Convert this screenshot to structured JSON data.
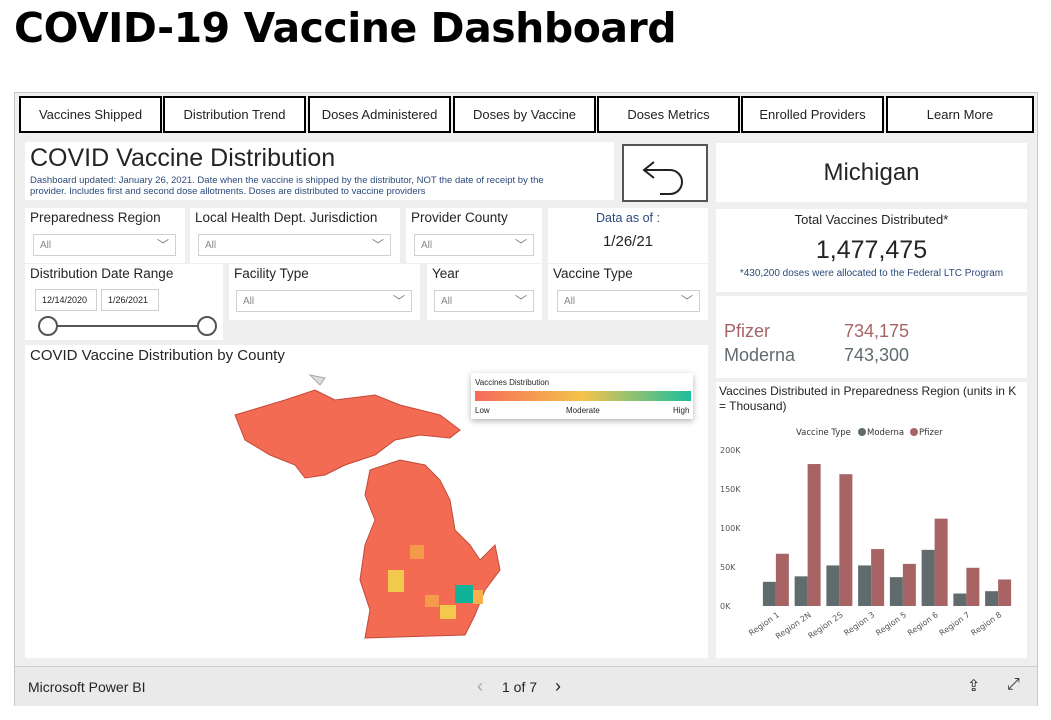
{
  "page_title": "COVID-19 Vaccine Dashboard",
  "nav": [
    "Vaccines Shipped",
    "Distribution Trend",
    "Doses Administered",
    "Doses by Vaccine",
    "Doses Metrics",
    "Enrolled Providers",
    "Learn More"
  ],
  "header": {
    "title": "COVID Vaccine Distribution",
    "note": "Dashboard updated: January 26, 2021. Date when the vaccine is shipped by the distributor, NOT the date of receipt by the provider. Includes first and second dose allotments. Doses are distributed to vaccine providers"
  },
  "state": "Michigan",
  "filters": {
    "preparedness_region": {
      "label": "Preparedness Region",
      "value": "All"
    },
    "lhd": {
      "label": "Local Health Dept. Jurisdiction",
      "value": "All"
    },
    "provider_county": {
      "label": "Provider County",
      "value": "All"
    },
    "date_range": {
      "label": "Distribution Date Range",
      "start": "12/14/2020",
      "end": "1/26/2021"
    },
    "facility_type": {
      "label": "Facility Type",
      "value": "All"
    },
    "year": {
      "label": "Year",
      "value": "All"
    },
    "vaccine_type": {
      "label": "Vaccine Type",
      "value": "All"
    }
  },
  "data_as_of": {
    "label": "Data as of :",
    "value": "1/26/21"
  },
  "total": {
    "label": "Total Vaccines Distributed*",
    "value": "1,477,475",
    "note": "*430,200 doses were allocated to the Federal LTC Program"
  },
  "breakdown": [
    {
      "name": "Pfizer",
      "value": "734,175",
      "color": "#a86464"
    },
    {
      "name": "Moderna",
      "value": "743,300",
      "color": "#5f6b6d"
    }
  ],
  "map": {
    "title": "COVID Vaccine Distribution by County",
    "legend_title": "Vaccines Distribution",
    "legend_low": "Low",
    "legend_mid": "Moderate",
    "legend_high": "High"
  },
  "chart_data": {
    "type": "bar",
    "title": "Vaccines Distributed in Preparedness Region (units in K = Thousand)",
    "legend_title": "Vaccine Type",
    "categories": [
      "Region 1",
      "Region 2N",
      "Region 2S",
      "Region 3",
      "Region 5",
      "Region 6",
      "Region 7",
      "Region 8"
    ],
    "series": [
      {
        "name": "Moderna",
        "color": "#5f6b6d",
        "values": [
          31,
          38,
          52,
          52,
          37,
          72,
          16,
          19
        ]
      },
      {
        "name": "Pfizer",
        "color": "#a86464",
        "values": [
          67,
          182,
          169,
          73,
          54,
          112,
          49,
          34
        ]
      }
    ],
    "yticks": [
      "0K",
      "50K",
      "100K",
      "150K",
      "200K"
    ],
    "ylim": [
      0,
      200
    ]
  },
  "footer": {
    "brand": "Microsoft Power BI",
    "page": "1 of 7"
  }
}
